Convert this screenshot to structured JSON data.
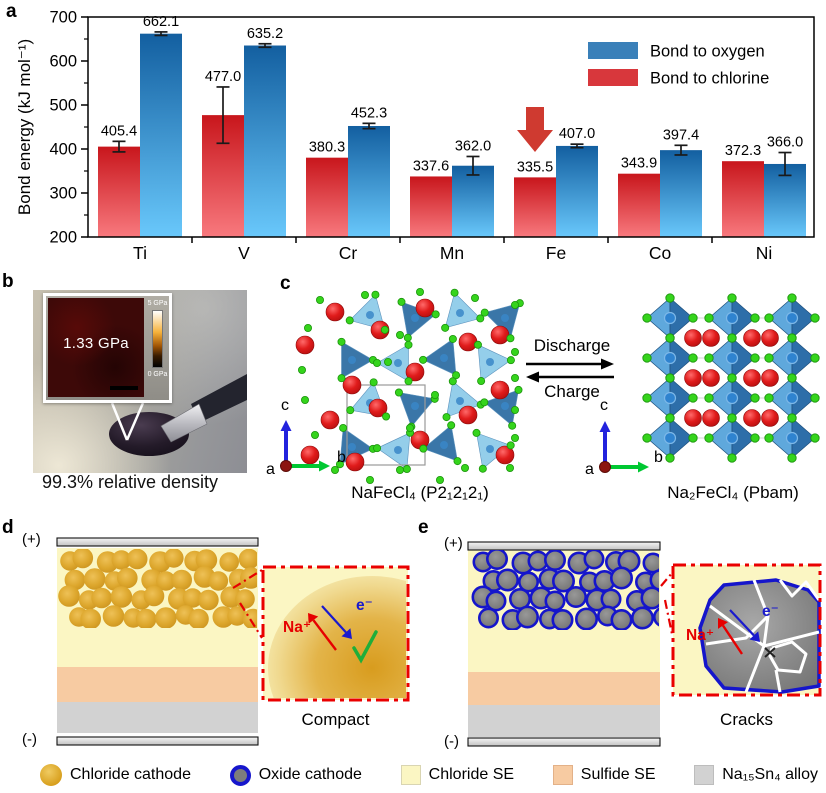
{
  "chart_data": {
    "type": "bar",
    "title": "",
    "xlabel": "",
    "ylabel": "Bond energy (kJ mol⁻¹)",
    "ylim": [
      200,
      700
    ],
    "ytick_step": 100,
    "grid": false,
    "legend_position": "top-right",
    "categories": [
      "Ti",
      "V",
      "Cr",
      "Mn",
      "Fe",
      "Co",
      "Ni"
    ],
    "series": [
      {
        "name": "Bond to chlorine",
        "legend_color": "#d8373c",
        "color_top": "#c8161c",
        "color_bottom": "#f8797e",
        "values": [
          405.4,
          477.0,
          380.3,
          337.6,
          335.5,
          343.9,
          372.3
        ],
        "errors": [
          12,
          64,
          0,
          0,
          0,
          0,
          0
        ]
      },
      {
        "name": "Bond to oxygen",
        "legend_color": "#3a80b9",
        "color_top": "#135fa0",
        "color_bottom": "#69c8fb",
        "values": [
          662.1,
          635.2,
          452.3,
          362.0,
          407.0,
          397.4,
          366.0
        ],
        "errors": [
          4,
          4,
          6,
          21,
          4,
          11,
          26
        ]
      }
    ],
    "legend_order": [
      1,
      0
    ],
    "annotation": {
      "type": "down-arrow",
      "category": "Fe",
      "series": "Bond to chlorine",
      "color": "#cf3a30"
    }
  },
  "panels": {
    "a": {
      "label": "a"
    },
    "b": {
      "label": "b",
      "inset_value": "1.33 GPa",
      "colorbar_max": "5 GPa",
      "colorbar_min": "0 GPa",
      "caption": "99.3% relative density"
    },
    "c": {
      "label": "c",
      "left_caption": "NaFeCl₄ (P2₁2₁2₁)",
      "right_caption": "Na₂FeCl₄ (Pbam)",
      "discharge_label": "Discharge",
      "charge_label": "Charge",
      "axis_a": "a",
      "axis_b": "b",
      "axis_c": "c"
    },
    "d": {
      "label": "d",
      "positive_label": "(+)",
      "negative_label": "(-)",
      "ion_label": "Na⁺",
      "electron_label": "e⁻",
      "inset_caption": "Compact"
    },
    "e": {
      "label": "e",
      "positive_label": "(+)",
      "negative_label": "(-)",
      "ion_label": "Na⁺",
      "electron_label": "e⁻",
      "inset_caption": "Cracks"
    }
  },
  "legend": {
    "items": [
      {
        "label": "Chloride cathode",
        "swatch": "chloride-cathode"
      },
      {
        "label": "Oxide cathode",
        "swatch": "oxide-cathode"
      },
      {
        "label": "Chloride SE",
        "swatch": "chloride-se"
      },
      {
        "label": "Sulfide SE",
        "swatch": "sulfide-se"
      },
      {
        "label": "Na₁₅Sn₄ alloy",
        "swatch": "alloy"
      }
    ]
  },
  "colors": {
    "chloride_se": "#FBF6C3",
    "sulfide_se": "#F7CBA2",
    "alloy": "#D2D2D2",
    "electrode_bar": "#e0e0e0",
    "chloride_cathode": "#dda42a",
    "oxide_cathode_fill": "#7c7c7c",
    "oxide_cathode_ring": "#1515cb",
    "na_ion_arrow": "#e60000",
    "electron_arrow": "#1a1acd",
    "check_green": "#1fae3a",
    "inset_border_red": "#ea0000",
    "structure_light_blue": "#8ecbe9",
    "structure_dark_blue": "#2f6fa3",
    "na_sphere_red": "#e01b1b",
    "cl_atom_green": "#35d41c",
    "fe_center_blue": "#2f83cf",
    "axis_a_dot": "#8c1510",
    "axis_b_green": "#00c832",
    "axis_c_blue": "#2222dd"
  }
}
